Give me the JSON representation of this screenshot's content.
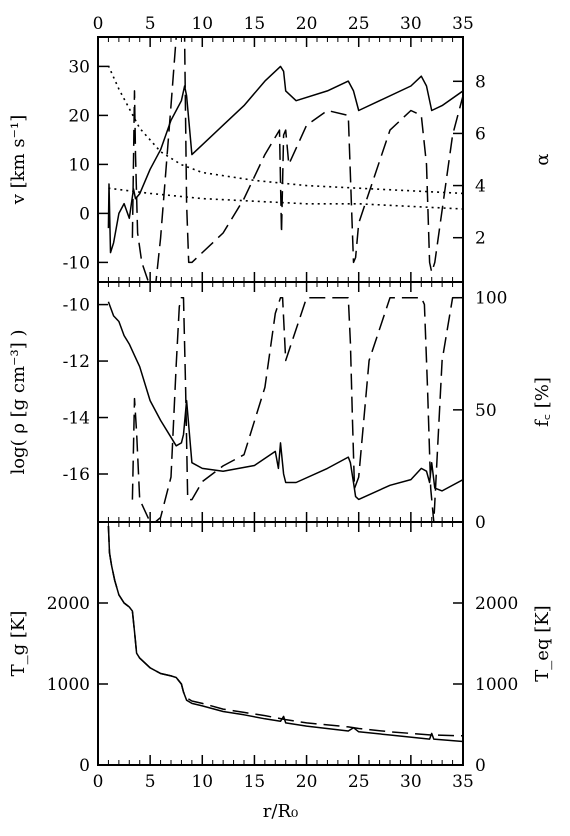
{
  "chart_data": [
    {
      "type": "line",
      "panel": "top",
      "xlabel": "",
      "ylabel": "v [km s⁻¹]",
      "y2label": "α",
      "xlim": [
        0,
        35
      ],
      "ylim": [
        -14,
        36
      ],
      "y2lim": [
        0.3,
        9.7
      ],
      "top_axis_ticks": [
        "0",
        "5",
        "10",
        "15",
        "20",
        "25",
        "30",
        "35"
      ],
      "yticks": [
        "-10",
        "0",
        "10",
        "20",
        "30"
      ],
      "y2ticks": [
        "2",
        "4",
        "6",
        "8"
      ],
      "series": [
        {
          "style": "solid",
          "axis": "left",
          "x": [
            1.0,
            1.05,
            1.2,
            1.5,
            2.0,
            2.5,
            3.0,
            3.4,
            3.6,
            4.0,
            5.0,
            6.0,
            7.0,
            7.5,
            8.0,
            8.3,
            8.5,
            9.0,
            10,
            12,
            14,
            16,
            17,
            17.5,
            17.8,
            18,
            19,
            22,
            24,
            24.5,
            25,
            27,
            30,
            31,
            31.5,
            32,
            33,
            35
          ],
          "y": [
            -3,
            6,
            -8,
            -6,
            0,
            2,
            -1,
            5,
            3,
            4,
            9,
            13,
            19,
            21,
            23,
            26,
            24,
            12,
            14,
            18,
            22,
            27,
            29,
            30,
            29,
            25,
            23,
            25,
            27,
            25,
            21,
            23,
            26,
            28,
            26,
            21,
            22,
            25
          ]
        },
        {
          "style": "dashed",
          "axis": "left",
          "x": [
            3.3,
            3.5,
            3.6,
            3.8,
            4.2,
            5,
            5.5,
            6,
            7,
            7.5,
            7.7,
            7.9,
            8.1,
            8.3,
            8.5,
            8.7,
            9,
            12,
            14,
            16,
            17.4,
            17.6,
            17.8,
            18.0,
            18.3,
            20,
            22,
            24,
            24.3,
            24.5,
            24.7,
            25,
            28,
            30,
            31,
            31.5,
            31.8,
            32.0,
            32.3,
            34,
            35
          ],
          "y": [
            -5,
            25,
            12,
            -4,
            -10,
            -15,
            -15,
            -5,
            22,
            36,
            36,
            36,
            36,
            36,
            2,
            -10,
            -10,
            -4,
            3,
            12,
            17,
            -4,
            16,
            17,
            10,
            18,
            21,
            20,
            2,
            -10,
            -9,
            -2,
            17,
            21,
            20,
            10,
            -10,
            -12,
            -10,
            16,
            24
          ]
        },
        {
          "style": "dotted",
          "axis": "right",
          "x": [
            1,
            2,
            4,
            6,
            8,
            10,
            15,
            20,
            25,
            30,
            35
          ],
          "y": [
            8.6,
            7.7,
            6.2,
            5.3,
            4.8,
            4.5,
            4.2,
            4.0,
            3.9,
            3.8,
            3.7
          ]
        },
        {
          "style": "dotted",
          "axis": "right",
          "x": [
            1,
            5,
            10,
            15,
            20,
            25,
            30,
            35
          ],
          "y": [
            3.9,
            3.7,
            3.5,
            3.4,
            3.3,
            3.3,
            3.2,
            3.1
          ]
        }
      ]
    },
    {
      "type": "line",
      "panel": "middle",
      "xlabel": "",
      "ylabel": "log( ρ [g cm⁻³] )",
      "y2label": "f꜀ [%]",
      "xlim": [
        0,
        35
      ],
      "ylim": [
        -17.7,
        -9.2
      ],
      "y2lim": [
        0,
        107
      ],
      "yticks": [
        "-10",
        "-12",
        "-14",
        "-16"
      ],
      "y2ticks": [
        "0",
        "50",
        "100"
      ],
      "series": [
        {
          "style": "solid",
          "axis": "left",
          "x": [
            1,
            1.5,
            2,
            2.5,
            3,
            3.5,
            4,
            5,
            6,
            7,
            7.5,
            8,
            8.2,
            8.5,
            9,
            10,
            12,
            15,
            17,
            17.3,
            17.5,
            17.8,
            18,
            19,
            22,
            24,
            24.2,
            24.5,
            24.7,
            25,
            28,
            30,
            31,
            31.5,
            31.8,
            32,
            32.3,
            33,
            35
          ],
          "y": [
            -9.9,
            -10.4,
            -10.6,
            -11.1,
            -11.4,
            -11.8,
            -12.2,
            -13.4,
            -14.1,
            -14.7,
            -15.0,
            -14.9,
            -14.6,
            -13.4,
            -15.6,
            -15.8,
            -15.9,
            -15.7,
            -15.2,
            -15.8,
            -14.9,
            -16.0,
            -16.3,
            -16.3,
            -15.8,
            -15.4,
            -15.6,
            -16.3,
            -16.8,
            -16.9,
            -16.4,
            -16.2,
            -15.8,
            -15.9,
            -16.3,
            -15.6,
            -16.5,
            -16.6,
            -16.2
          ]
        },
        {
          "style": "dashed",
          "axis": "right",
          "x": [
            3.3,
            3.5,
            3.7,
            4.0,
            4.5,
            5,
            5.5,
            6,
            7,
            7.5,
            7.8,
            8.0,
            8.2,
            8.4,
            8.6,
            9,
            10,
            12,
            14,
            16,
            17,
            17.5,
            17.7,
            18,
            20,
            21,
            24,
            24.2,
            24.4,
            24.6,
            25,
            26,
            28,
            30,
            31,
            31.3,
            31.6,
            31.9,
            32.2,
            33,
            34,
            35
          ],
          "y": [
            10,
            55,
            40,
            10,
            5,
            0,
            0,
            2,
            20,
            70,
            96,
            100,
            100,
            60,
            10,
            10,
            18,
            25,
            30,
            60,
            93,
            100,
            100,
            72,
            100,
            100,
            100,
            80,
            45,
            15,
            20,
            72,
            100,
            100,
            100,
            97,
            60,
            15,
            0,
            72,
            100,
            100
          ]
        }
      ]
    },
    {
      "type": "line",
      "panel": "bottom",
      "xlabel": "r/R₀",
      "ylabel": "T_g [K]",
      "y2label": "T_eq [K]",
      "xlim": [
        0,
        35
      ],
      "ylim": [
        0,
        3000
      ],
      "y2lim": [
        0,
        3000
      ],
      "xticks": [
        "0",
        "5",
        "10",
        "15",
        "20",
        "25",
        "30",
        "35"
      ],
      "yticks": [
        "0",
        "1000",
        "2000"
      ],
      "y2ticks": [
        "0",
        "1000",
        "2000"
      ],
      "series": [
        {
          "style": "solid",
          "axis": "left",
          "x": [
            1,
            1.1,
            1.3,
            1.6,
            2,
            2.5,
            3,
            3.3,
            3.5,
            3.7,
            4,
            5,
            6,
            7,
            7.5,
            8,
            8.2,
            8.5,
            9,
            10,
            12,
            14,
            16,
            17.5,
            17.8,
            18,
            20,
            24,
            24.5,
            25,
            28,
            31.8,
            32,
            32.2,
            35
          ],
          "y": [
            2950,
            2620,
            2460,
            2280,
            2100,
            2000,
            1950,
            1900,
            1650,
            1380,
            1320,
            1200,
            1130,
            1100,
            1080,
            1000,
            900,
            800,
            760,
            730,
            660,
            620,
            570,
            540,
            600,
            520,
            480,
            420,
            460,
            410,
            370,
            320,
            390,
            320,
            290
          ]
        },
        {
          "style": "dashed",
          "axis": "left",
          "x": [
            1,
            1.1,
            1.3,
            1.6,
            2,
            2.5,
            3,
            3.3,
            3.5,
            3.7,
            4,
            5,
            6,
            7,
            7.5,
            8,
            8.2,
            8.5,
            9,
            10,
            12,
            14,
            16,
            18,
            20,
            24,
            25,
            28,
            32,
            35
          ],
          "y": [
            2950,
            2620,
            2460,
            2280,
            2100,
            2000,
            1950,
            1900,
            1650,
            1380,
            1320,
            1200,
            1130,
            1100,
            1080,
            1000,
            900,
            830,
            790,
            760,
            690,
            650,
            610,
            560,
            520,
            470,
            450,
            410,
            370,
            360
          ]
        }
      ]
    }
  ]
}
